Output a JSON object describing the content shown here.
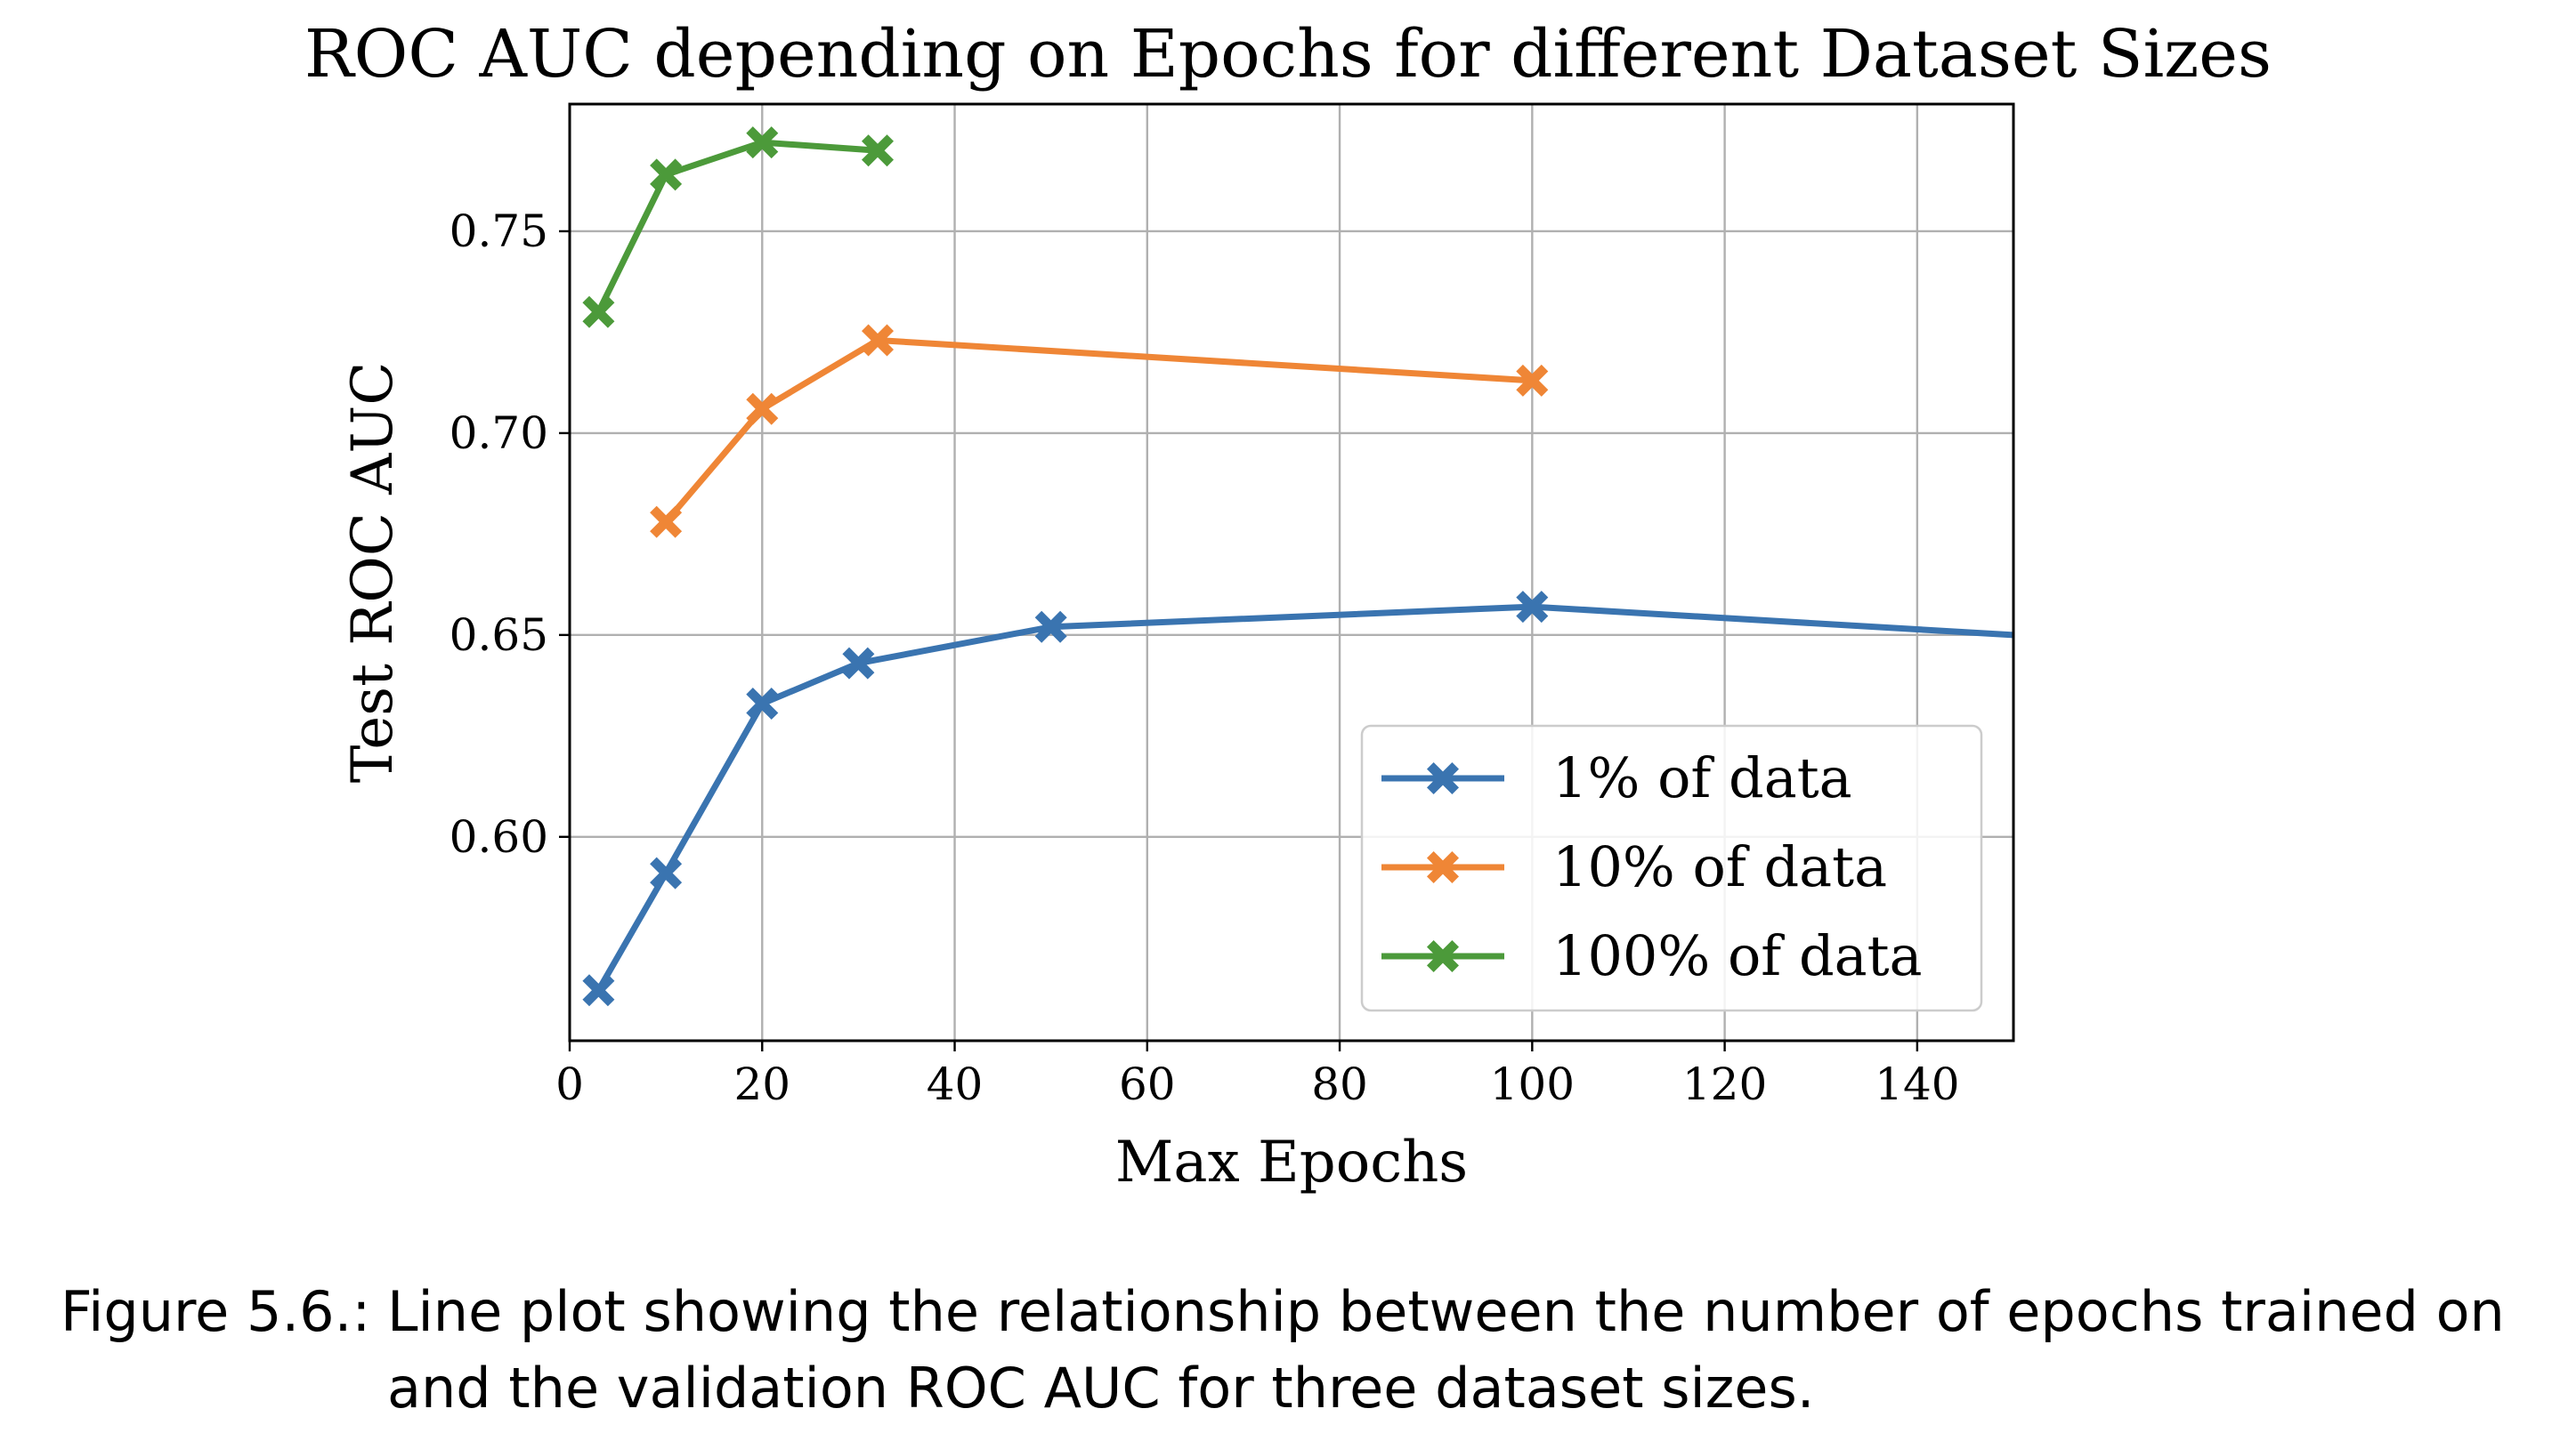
{
  "chart_data": {
    "type": "line",
    "title": "ROC AUC depending on Epochs for different Dataset Sizes",
    "xlabel": "Max Epochs",
    "ylabel": "Test ROC AUC",
    "xlim": [
      0,
      150
    ],
    "ylim": [
      0.5495,
      0.7815
    ],
    "xticks": [
      0,
      20,
      40,
      60,
      80,
      100,
      120,
      140
    ],
    "yticks": [
      0.6,
      0.65,
      0.7,
      0.75
    ],
    "ytick_labels": [
      "0.60",
      "0.65",
      "0.70",
      "0.75"
    ],
    "grid": true,
    "legend_position": "lower-right",
    "marker": "X",
    "series": [
      {
        "name": "1% of data",
        "color": "#3a74b0",
        "x": [
          3,
          10,
          20,
          30,
          50,
          100,
          150
        ],
        "y": [
          0.562,
          0.591,
          0.633,
          0.643,
          0.652,
          0.657,
          0.65
        ],
        "markers": [
          true,
          true,
          true,
          true,
          true,
          true,
          false
        ]
      },
      {
        "name": "10% of data",
        "color": "#ef8636",
        "x": [
          10,
          20,
          32,
          100
        ],
        "y": [
          0.678,
          0.706,
          0.723,
          0.713
        ],
        "markers": [
          true,
          true,
          true,
          true
        ]
      },
      {
        "name": "100% of data",
        "color": "#4c9a3a",
        "x": [
          3,
          10,
          20,
          32
        ],
        "y": [
          0.73,
          0.764,
          0.772,
          0.77
        ],
        "markers": [
          true,
          true,
          true,
          true
        ]
      }
    ]
  },
  "caption": {
    "prefix": "Figure 5.6.:",
    "text": "Line plot showing the relationship between the number of epochs trained on and the validation ROC AUC for three dataset sizes."
  }
}
